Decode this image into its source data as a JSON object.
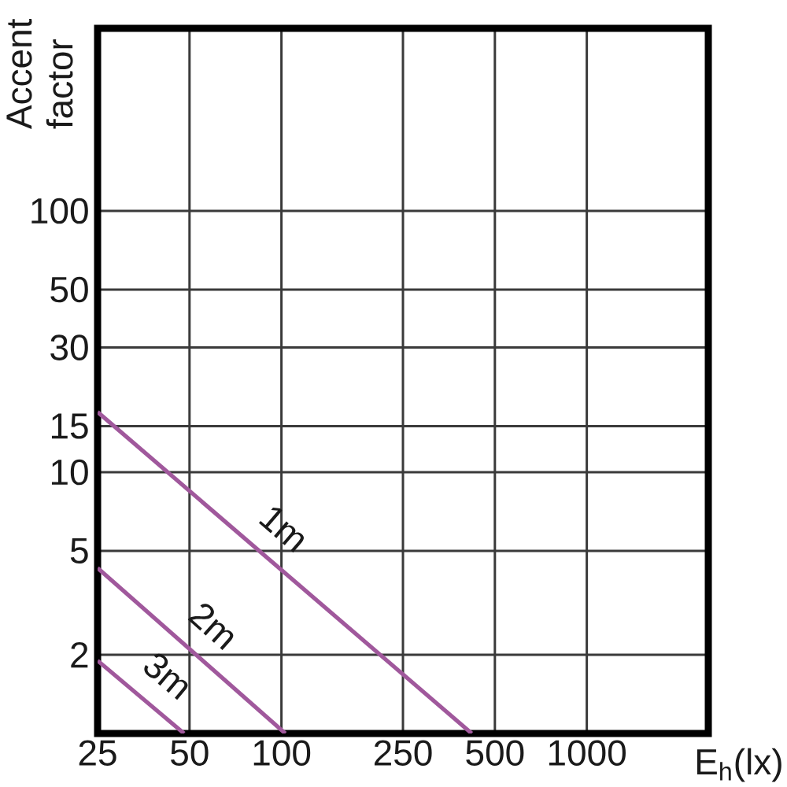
{
  "chart_data": {
    "type": "line",
    "xlabel": "E$_{h}$(lx)",
    "ylabel": "Accent factor",
    "log": "xy",
    "xlim": [
      25,
      2500
    ],
    "ylim": [
      1,
      500
    ],
    "xticks": [
      25,
      50,
      100,
      250,
      500,
      1000
    ],
    "yticks": [
      2,
      5,
      10,
      15,
      30,
      50,
      100
    ],
    "grid": true,
    "series": [
      {
        "name": "1m",
        "color": "#a0589c",
        "x": [
          25,
          420
        ],
        "values": [
          17,
          1
        ]
      },
      {
        "name": "2m",
        "color": "#a0589c",
        "x": [
          25,
          103
        ],
        "values": [
          4.3,
          1
        ]
      },
      {
        "name": "3m",
        "color": "#a0589c",
        "x": [
          25,
          48
        ],
        "values": [
          1.9,
          1
        ]
      }
    ]
  }
}
